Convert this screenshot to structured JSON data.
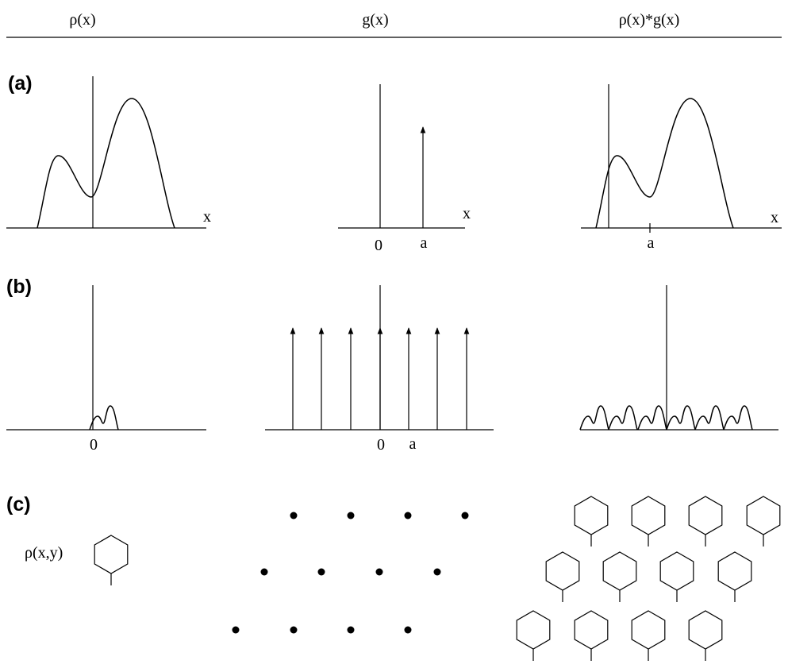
{
  "columns": {
    "rho": "ρ(x)",
    "g": "g(x)",
    "conv": "ρ(x)*g(x)"
  },
  "rows": {
    "a": {
      "tag": "(a)",
      "rho_axis": "x",
      "g_axis": "x",
      "g_origin": "0",
      "g_shift": "a",
      "conv_axis": "x",
      "conv_shift": "a"
    },
    "b": {
      "tag": "(b)",
      "rho_origin": "0",
      "g_origin": "0",
      "g_spacing": "a"
    },
    "c": {
      "tag": "(c)",
      "motif_label": "ρ(x,y)"
    }
  }
}
